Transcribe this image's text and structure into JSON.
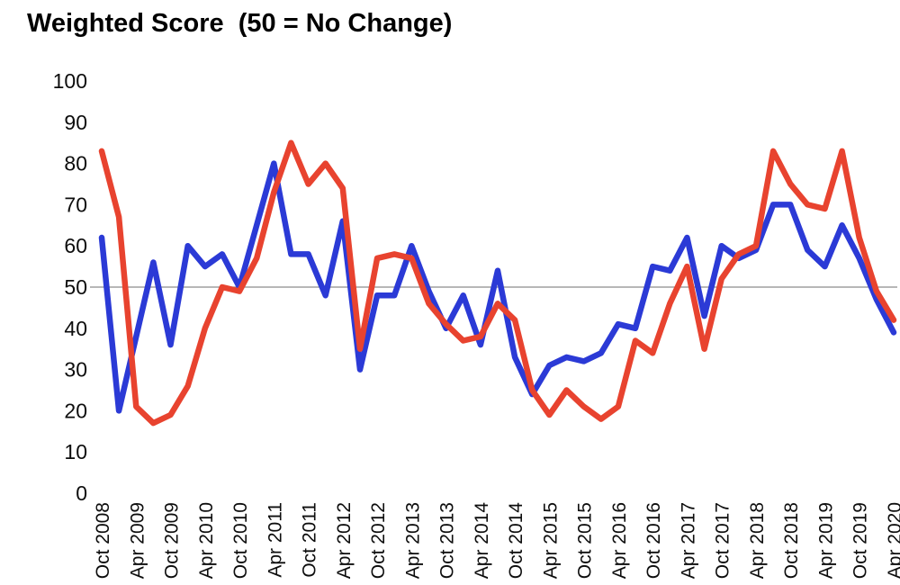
{
  "title": "Weighted Score  (50 = No Change)",
  "colors": {
    "series_blue": "#2b3ad6",
    "series_red": "#e8432f",
    "gridline": "#8c8c8c",
    "text": "#0d0d0d",
    "background": "#ffffff"
  },
  "chart_data": {
    "type": "line",
    "title": "Weighted Score  (50 = No Change)",
    "xlabel": "",
    "ylabel": "",
    "ylim": [
      0,
      100
    ],
    "yticks": [
      0,
      10,
      20,
      30,
      40,
      50,
      60,
      70,
      80,
      90,
      100
    ],
    "reference_line": 50,
    "grid": "horizontal line at 50 only",
    "legend": "none",
    "x_frequency": "quarterly",
    "x": [
      "Oct 2008",
      "Jan 2009",
      "Apr 2009",
      "Jul 2009",
      "Oct 2009",
      "Jan 2010",
      "Apr 2010",
      "Jul 2010",
      "Oct 2010",
      "Jan 2011",
      "Apr 2011",
      "Jul 2011",
      "Oct 2011",
      "Jan 2012",
      "Apr 2012",
      "Jul 2012",
      "Oct 2012",
      "Jan 2013",
      "Apr 2013",
      "Jul 2013",
      "Oct 2013",
      "Jan 2014",
      "Apr 2014",
      "Jul 2014",
      "Oct 2014",
      "Jan 2015",
      "Apr 2015",
      "Jul 2015",
      "Oct 2015",
      "Jan 2016",
      "Apr 2016",
      "Jul 2016",
      "Oct 2016",
      "Jan 2017",
      "Apr 2017",
      "Jul 2017",
      "Oct 2017",
      "Jan 2018",
      "Apr 2018",
      "Jul 2018",
      "Oct 2018",
      "Jan 2019",
      "Apr 2019",
      "Jul 2019",
      "Oct 2019",
      "Jan 2020",
      "Apr 2020"
    ],
    "x_tick_labels": [
      "Oct 2008",
      "Apr 2009",
      "Oct 2009",
      "Apr 2010",
      "Oct 2010",
      "Apr 2011",
      "Oct 2011",
      "Apr 2012",
      "Oct 2012",
      "Apr 2013",
      "Oct 2013",
      "Apr 2014",
      "Oct 2014",
      "Apr 2015",
      "Oct 2015",
      "Apr 2016",
      "Oct 2016",
      "Apr 2017",
      "Oct 2017",
      "Apr 2018",
      "Oct 2018",
      "Apr 2019",
      "Oct 2019",
      "Apr 2020"
    ],
    "series": [
      {
        "name": "blue",
        "color": "#2b3ad6",
        "values": [
          62,
          20,
          38,
          56,
          36,
          60,
          55,
          58,
          50,
          65,
          80,
          58,
          58,
          48,
          66,
          30,
          48,
          48,
          60,
          49,
          40,
          48,
          36,
          54,
          33,
          24,
          31,
          33,
          32,
          34,
          41,
          40,
          55,
          54,
          62,
          43,
          60,
          57,
          59,
          70,
          70,
          59,
          55,
          65,
          57,
          47,
          39
        ]
      },
      {
        "name": "red",
        "color": "#e8432f",
        "values": [
          83,
          67,
          21,
          17,
          19,
          26,
          40,
          50,
          49,
          57,
          73,
          85,
          75,
          80,
          74,
          35,
          57,
          58,
          57,
          46,
          41,
          37,
          38,
          46,
          42,
          25,
          19,
          25,
          21,
          18,
          21,
          37,
          34,
          46,
          55,
          35,
          52,
          58,
          60,
          83,
          75,
          70,
          69,
          83,
          62,
          49,
          42
        ]
      }
    ]
  }
}
